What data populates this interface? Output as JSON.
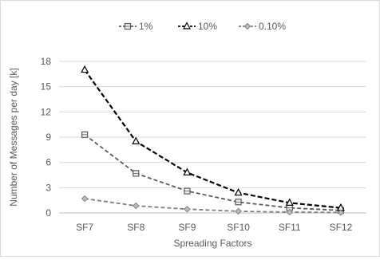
{
  "chart_data": {
    "type": "line",
    "categories": [
      "SF7",
      "SF8",
      "SF9",
      "SF10",
      "SF11",
      "SF12"
    ],
    "series": [
      {
        "name": "1%",
        "values": [
          9.3,
          4.7,
          2.6,
          1.3,
          0.6,
          0.3
        ],
        "color": "#595959",
        "dash": "5,3",
        "marker": "square"
      },
      {
        "name": "10%",
        "values": [
          17.0,
          8.5,
          4.8,
          2.4,
          1.2,
          0.6
        ],
        "color": "#000000",
        "dash": "6,3",
        "marker": "triangle"
      },
      {
        "name": "0.10%",
        "values": [
          1.7,
          0.85,
          0.45,
          0.2,
          0.1,
          0.05
        ],
        "color": "#7f7f7f",
        "dash": "5,3",
        "marker": "diamond"
      }
    ],
    "yticks": [
      0,
      3,
      6,
      9,
      12,
      15,
      18
    ],
    "ylim": [
      0,
      18
    ],
    "xlabel": "Spreading Factors",
    "ylabel": "Number of Messages per day [k]",
    "grid": true,
    "legend": "top"
  }
}
